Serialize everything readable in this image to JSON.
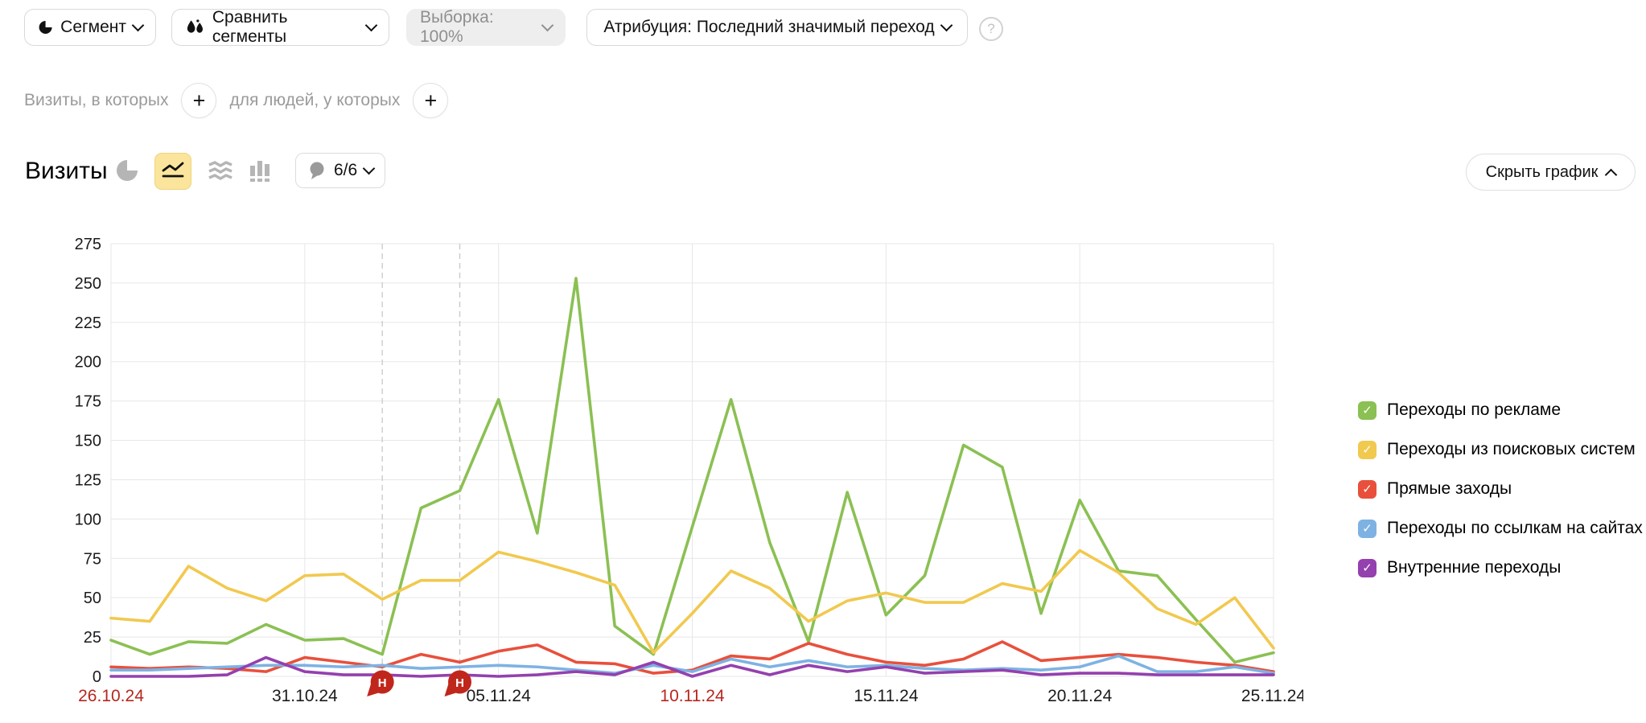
{
  "toolbar": {
    "segment": "Сегмент",
    "compare": "Сравнить сегменты",
    "sampling": "Выборка: 100%",
    "attribution": "Атрибуция: Последний значимый переход",
    "help": "?"
  },
  "filters": {
    "visits_label": "Визиты, в которых",
    "users_label": "для людей, у которых",
    "add": "+"
  },
  "chart_header": {
    "title": "Визиты",
    "comments_count": "6/6",
    "hide_chart": "Скрыть график"
  },
  "chart_data": {
    "type": "line",
    "title": "Визиты",
    "ylim": [
      0,
      275
    ],
    "ytick_step": 25,
    "grid": true,
    "legend_position": "right",
    "x_tick_indices": [
      0,
      5,
      10,
      15,
      20,
      25,
      30
    ],
    "x_tick_labels": [
      "26.10.24",
      "31.10.24",
      "05.11.24",
      "10.11.24",
      "15.11.24",
      "20.11.24",
      "25.11.24"
    ],
    "x_tick_red": [
      "26.10.24",
      "10.11.24"
    ],
    "categories": [
      "26.10.24",
      "27.10.24",
      "28.10.24",
      "29.10.24",
      "30.10.24",
      "31.10.24",
      "01.11.24",
      "02.11.24",
      "03.11.24",
      "04.11.24",
      "05.11.24",
      "06.11.24",
      "07.11.24",
      "08.11.24",
      "09.11.24",
      "10.11.24",
      "11.11.24",
      "12.11.24",
      "13.11.24",
      "14.11.24",
      "15.11.24",
      "16.11.24",
      "17.11.24",
      "18.11.24",
      "19.11.24",
      "20.11.24",
      "21.11.24",
      "22.11.24",
      "23.11.24",
      "24.11.24",
      "25.11.24"
    ],
    "series": [
      {
        "name": "Переходы по рекламе",
        "color": "#8BC053",
        "values": [
          23,
          14,
          22,
          21,
          33,
          23,
          24,
          14,
          107,
          118,
          176,
          91,
          253,
          32,
          14,
          95,
          176,
          85,
          22,
          117,
          39,
          64,
          147,
          133,
          40,
          112,
          67,
          64,
          36,
          9,
          15
        ]
      },
      {
        "name": "Переходы из поисковых систем",
        "color": "#F1C94F",
        "values": [
          37,
          35,
          70,
          56,
          48,
          64,
          65,
          49,
          61,
          61,
          79,
          73,
          66,
          58,
          15,
          40,
          67,
          56,
          35,
          48,
          53,
          47,
          47,
          59,
          54,
          80,
          66,
          43,
          33,
          50,
          18
        ]
      },
      {
        "name": "Прямые заходы",
        "color": "#E8503C",
        "values": [
          6,
          5,
          6,
          5,
          3,
          12,
          9,
          6,
          14,
          9,
          16,
          20,
          9,
          8,
          2,
          4,
          13,
          11,
          21,
          14,
          9,
          7,
          11,
          22,
          10,
          12,
          14,
          12,
          9,
          7,
          3
        ]
      },
      {
        "name": "Переходы по ссылкам на сайтах",
        "color": "#7EB2E3",
        "values": [
          4,
          4,
          5,
          6,
          7,
          7,
          6,
          7,
          5,
          6,
          7,
          6,
          4,
          2,
          7,
          3,
          11,
          6,
          10,
          6,
          7,
          5,
          4,
          5,
          4,
          6,
          13,
          3,
          3,
          6,
          2
        ]
      },
      {
        "name": "Внутренние переходы",
        "color": "#9440AE",
        "values": [
          0,
          0,
          0,
          1,
          12,
          3,
          1,
          1,
          0,
          1,
          0,
          1,
          3,
          1,
          9,
          0,
          7,
          1,
          7,
          3,
          6,
          2,
          3,
          4,
          1,
          2,
          2,
          1,
          1,
          1,
          1
        ]
      }
    ],
    "annotations": [
      {
        "index": 7,
        "date": "02.11.24",
        "label": "Н"
      },
      {
        "index": 9,
        "date": "04.11.24",
        "label": "Н"
      }
    ]
  }
}
